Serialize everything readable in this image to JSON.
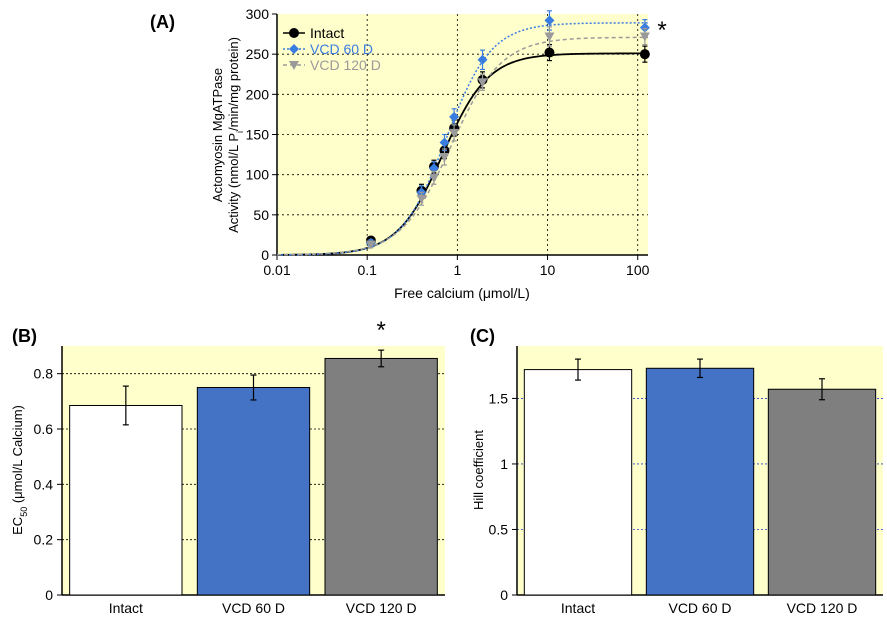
{
  "colors": {
    "panel_bg": "#ffffcc",
    "intact": "#000000",
    "vcd60": "#3a7de0",
    "vcd120": "#9a9a9a",
    "bar_intact": "#ffffff",
    "bar_vcd60": "#4472c4",
    "bar_vcd120": "#7f7f7f",
    "grid": "#000000",
    "grid_blue": "#2244cc"
  },
  "chart_data": [
    {
      "panel_label": "(A)",
      "type": "line",
      "xscale": "log",
      "xlabel": "Free calcium (μmol/L)",
      "ylabel_line1": "Actomyosin MgATPase",
      "ylabel_line2_pre": "Activity (nmol/L P",
      "ylabel_line2_sub": "i",
      "ylabel_line2_post": "/min/mg protein)",
      "xlim": [
        0.01,
        130
      ],
      "ylim": [
        0,
        300
      ],
      "xticks": [
        0.01,
        0.1,
        1,
        10,
        100
      ],
      "xtick_labels": [
        "0.01",
        "0.1",
        "1",
        "10",
        "100"
      ],
      "yticks": [
        0,
        50,
        100,
        150,
        200,
        250,
        300
      ],
      "ytick_labels": [
        "0",
        "50",
        "100",
        "150",
        "200",
        "250",
        "300"
      ],
      "grid": true,
      "legend_position": "top-left",
      "significance": "*",
      "x": [
        0.11,
        0.4,
        0.55,
        0.72,
        0.92,
        1.9,
        10.5,
        120
      ],
      "series": [
        {
          "name": "Intact",
          "marker": "circle",
          "line": "solid",
          "values": [
            18,
            80,
            110,
            130,
            158,
            218,
            252,
            250
          ],
          "errors": [
            4,
            8,
            8,
            10,
            10,
            10,
            10,
            10
          ],
          "fit": {
            "max": 251,
            "ec50": 0.69,
            "hill": 1.72
          }
        },
        {
          "name": "VCD 60 D",
          "marker": "diamond",
          "line": "dotted",
          "values": [
            15,
            78,
            108,
            140,
            172,
            243,
            292,
            283
          ],
          "errors": [
            4,
            8,
            8,
            10,
            10,
            12,
            12,
            10
          ],
          "fit": {
            "max": 289,
            "ec50": 0.75,
            "hill": 1.74
          }
        },
        {
          "name": "VCD 120 D",
          "marker": "triangle-down",
          "line": "dashed",
          "values": [
            13,
            70,
            96,
            122,
            152,
            215,
            272,
            272
          ],
          "errors": [
            4,
            8,
            8,
            10,
            10,
            10,
            12,
            10
          ],
          "fit": {
            "max": 271,
            "ec50": 0.85,
            "hill": 1.57
          }
        }
      ]
    },
    {
      "panel_label": "(B)",
      "type": "bar",
      "categories": [
        "Intact",
        "VCD 60 D",
        "VCD 120 D"
      ],
      "values": [
        0.685,
        0.75,
        0.855
      ],
      "errors": [
        0.07,
        0.045,
        0.03
      ],
      "ylabel_pre": "EC",
      "ylabel_sub": "50",
      "ylabel_post": " (μmol/L Calcium)",
      "ylim": [
        0,
        0.9
      ],
      "yticks": [
        0,
        0.2,
        0.4,
        0.6,
        0.8
      ],
      "ytick_labels": [
        "0",
        "0.2",
        "0.4",
        "0.6",
        "0.8"
      ],
      "grid": true,
      "significance": "*",
      "significance_index": 2
    },
    {
      "panel_label": "(C)",
      "type": "bar",
      "categories": [
        "Intact",
        "VCD 60 D",
        "VCD 120 D"
      ],
      "values": [
        1.72,
        1.73,
        1.57
      ],
      "errors": [
        0.08,
        0.07,
        0.08
      ],
      "ylabel": "Hill coefficient",
      "ylim": [
        0,
        1.9
      ],
      "yticks": [
        0,
        0.5,
        1,
        1.5
      ],
      "ytick_labels": [
        "0",
        "0.5",
        "1",
        "1.5"
      ],
      "grid": true
    }
  ]
}
